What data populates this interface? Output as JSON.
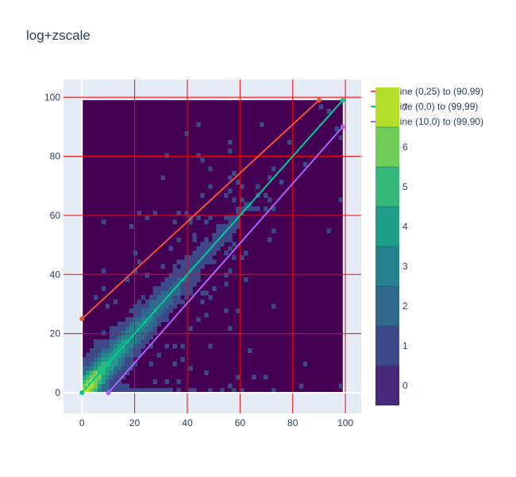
{
  "chart_data": {
    "type": "heatmap",
    "title": "log+zscale",
    "xlabel": "",
    "ylabel": "",
    "xlim": [
      -7,
      106
    ],
    "ylim": [
      -7,
      106
    ],
    "x_ticks": [
      0,
      20,
      40,
      60,
      80,
      100
    ],
    "y_ticks": [
      0,
      20,
      40,
      60,
      80,
      100
    ],
    "grid": true,
    "gridline_color": "#ff0000",
    "heatmap": {
      "x_range": [
        0,
        99
      ],
      "y_range": [
        0,
        99
      ],
      "style": "contour",
      "z_scale": "log",
      "levels": [
        -0.5,
        0.5,
        1.5,
        2.5,
        3.5,
        4.5,
        5.5,
        6.5,
        7.5
      ]
    },
    "colorbar": {
      "ticks": [
        0,
        1,
        2,
        3,
        4,
        5,
        6,
        7
      ],
      "range": [
        -0.5,
        7.5
      ],
      "colorscale": [
        "#440154",
        "#482878",
        "#3e4989",
        "#31688e",
        "#26828e",
        "#1f9e89",
        "#35b779",
        "#6ece58",
        "#b5de2b",
        "#fde725"
      ]
    },
    "series": [
      {
        "name": "line (0,25) to (90,99)",
        "x": [
          0,
          90
        ],
        "y": [
          25,
          99
        ],
        "color": "#ef553b"
      },
      {
        "name": "line (0,0) to (99,99)",
        "x": [
          0,
          99
        ],
        "y": [
          0,
          99
        ],
        "color": "#00cc96"
      },
      {
        "name": "line (10,0) to (99,90)",
        "x": [
          10,
          99
        ],
        "y": [
          0,
          90
        ],
        "color": "#ab63fa"
      }
    ],
    "legend_position": "top-right"
  }
}
